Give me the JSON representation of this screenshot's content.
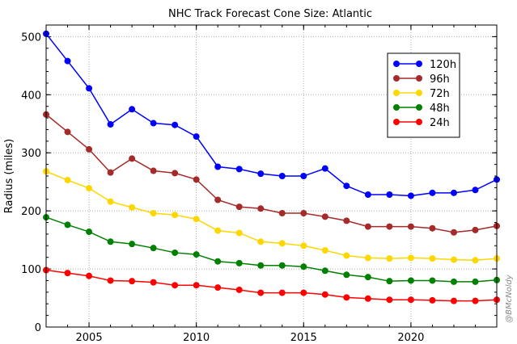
{
  "chart_data": {
    "type": "line",
    "title": "NHC Track Forecast Cone Size: Atlantic",
    "xlabel": "",
    "ylabel": "Radius (miles)",
    "xlim": [
      2003,
      2024
    ],
    "ylim": [
      0,
      520
    ],
    "x_ticks": [
      2005,
      2010,
      2015,
      2020
    ],
    "y_ticks": [
      0,
      100,
      200,
      300,
      400,
      500
    ],
    "grid": true,
    "legend_position": "top-right",
    "x": [
      2003,
      2004,
      2005,
      2006,
      2007,
      2008,
      2009,
      2010,
      2011,
      2012,
      2013,
      2014,
      2015,
      2016,
      2017,
      2018,
      2019,
      2020,
      2021,
      2022,
      2023,
      2024
    ],
    "series": [
      {
        "name": "120h",
        "color": "#0000ff",
        "values": [
          505,
          458,
          411,
          349,
          375,
          351,
          348,
          328,
          276,
          272,
          264,
          260,
          260,
          273,
          243,
          228,
          228,
          226,
          231,
          231,
          236,
          254
        ]
      },
      {
        "name": "96h",
        "color": "#a52a2a",
        "values": [
          366,
          336,
          306,
          266,
          290,
          269,
          265,
          254,
          219,
          207,
          204,
          196,
          196,
          190,
          183,
          173,
          173,
          173,
          170,
          163,
          167,
          174
        ]
      },
      {
        "name": "72h",
        "color": "#ffd700",
        "values": [
          268,
          253,
          239,
          216,
          206,
          196,
          193,
          186,
          166,
          162,
          147,
          144,
          140,
          132,
          123,
          119,
          118,
          119,
          118,
          116,
          115,
          118
        ]
      },
      {
        "name": "48h",
        "color": "#008000",
        "values": [
          189,
          176,
          164,
          147,
          143,
          136,
          128,
          125,
          113,
          110,
          106,
          106,
          104,
          97,
          90,
          86,
          79,
          80,
          80,
          78,
          78,
          81
        ]
      },
      {
        "name": "24h",
        "color": "#ff0000",
        "values": [
          98,
          93,
          88,
          80,
          79,
          77,
          72,
          72,
          68,
          64,
          59,
          59,
          59,
          56,
          51,
          49,
          47,
          47,
          46,
          45,
          45,
          47
        ]
      }
    ]
  },
  "credit": "@BMcNoldy"
}
